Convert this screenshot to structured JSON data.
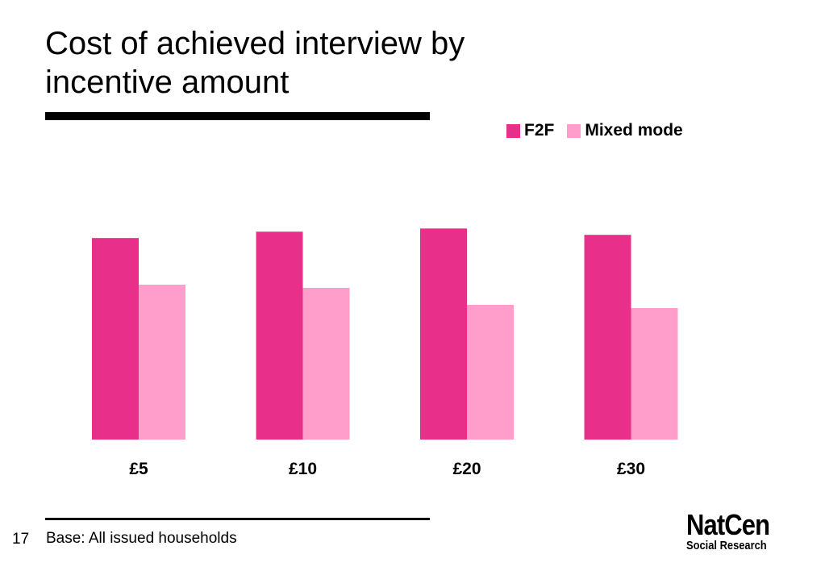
{
  "slide": {
    "title": "Cost of achieved interview by incentive amount",
    "page_number": "17",
    "base_note": "Base: All issued households",
    "logo": {
      "main": "NatCen",
      "sub": "Social Research"
    }
  },
  "colors": {
    "f2f": "#e8308a",
    "mixed": "#ff9dcb"
  },
  "chart_data": {
    "type": "bar",
    "title": "",
    "xlabel": "",
    "ylabel": "",
    "categories": [
      "£5",
      "£10",
      "£20",
      "£30"
    ],
    "series": [
      {
        "name": "F2F",
        "values": [
          95,
          98,
          99.5,
          96.5
        ]
      },
      {
        "name": "Mixed mode",
        "values": [
          73,
          71.5,
          63.5,
          62
        ]
      }
    ],
    "ylim": [
      0,
      100
    ],
    "grid": false,
    "legend": "top-right"
  }
}
